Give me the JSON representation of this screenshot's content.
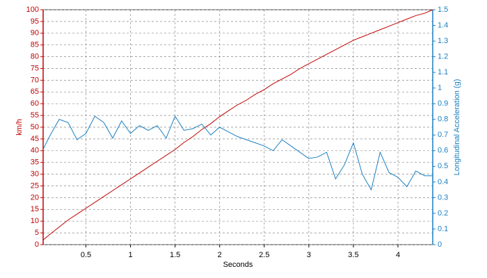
{
  "chart_data": {
    "type": "line",
    "x_label": "Seconds",
    "y_label": "km/h",
    "y2_label": "Longitudinal Acceleration (g)",
    "x": [
      0.02,
      0.1,
      0.2,
      0.3,
      0.4,
      0.5,
      0.6,
      0.7,
      0.8,
      0.9,
      1.0,
      1.1,
      1.2,
      1.3,
      1.4,
      1.5,
      1.6,
      1.7,
      1.8,
      1.9,
      2.0,
      2.1,
      2.2,
      2.3,
      2.4,
      2.5,
      2.6,
      2.7,
      2.8,
      2.9,
      3.0,
      3.1,
      3.2,
      3.3,
      3.4,
      3.5,
      3.6,
      3.7,
      3.8,
      3.9,
      4.0,
      4.1,
      4.2,
      4.3,
      4.39
    ],
    "series": [
      {
        "name": "km/h",
        "color": "#c00000",
        "values": [
          2,
          4.5,
          7.5,
          10.5,
          13,
          15.5,
          18,
          20.5,
          23,
          25.5,
          28,
          30.5,
          33,
          35.5,
          38,
          40.5,
          43.5,
          46,
          49,
          51.5,
          54.5,
          57,
          59.5,
          61.5,
          64,
          66,
          68.5,
          70.5,
          72.5,
          75,
          77,
          79,
          81,
          83,
          85,
          87,
          88.5,
          90,
          91.5,
          93,
          94.5,
          96,
          97.5,
          98.5,
          100
        ]
      },
      {
        "name": "Longitudinal Acceleration (g)",
        "color": "#1a7fc0",
        "axis": "y2",
        "values": [
          0.61,
          0.7,
          0.8,
          0.78,
          0.67,
          0.71,
          0.82,
          0.78,
          0.68,
          0.79,
          0.71,
          0.76,
          0.73,
          0.76,
          0.68,
          0.82,
          0.73,
          0.74,
          0.77,
          0.7,
          0.75,
          0.72,
          0.69,
          0.67,
          0.65,
          0.63,
          0.6,
          0.67,
          0.63,
          0.59,
          0.55,
          0.56,
          0.59,
          0.42,
          0.51,
          0.65,
          0.45,
          0.35,
          0.59,
          0.46,
          0.43,
          0.37,
          0.47,
          0.44,
          0.44
        ]
      }
    ],
    "xlim": [
      0.02,
      4.39
    ],
    "xticks": [
      0.5,
      1,
      1.5,
      2,
      2.5,
      3,
      3.5,
      4
    ],
    "ylim": [
      0,
      100
    ],
    "yticks": [
      0,
      5,
      10,
      15,
      20,
      25,
      30,
      35,
      40,
      45,
      50,
      55,
      60,
      65,
      70,
      75,
      80,
      85,
      90,
      95,
      100
    ],
    "y2lim": [
      0,
      1.5
    ],
    "y2ticks": [
      0,
      0.1,
      0.2,
      0.3,
      0.4,
      0.5,
      0.6,
      0.7,
      0.8,
      0.9,
      1,
      1.1,
      1.2,
      1.3,
      1.4,
      1.5
    ],
    "grid": true
  }
}
